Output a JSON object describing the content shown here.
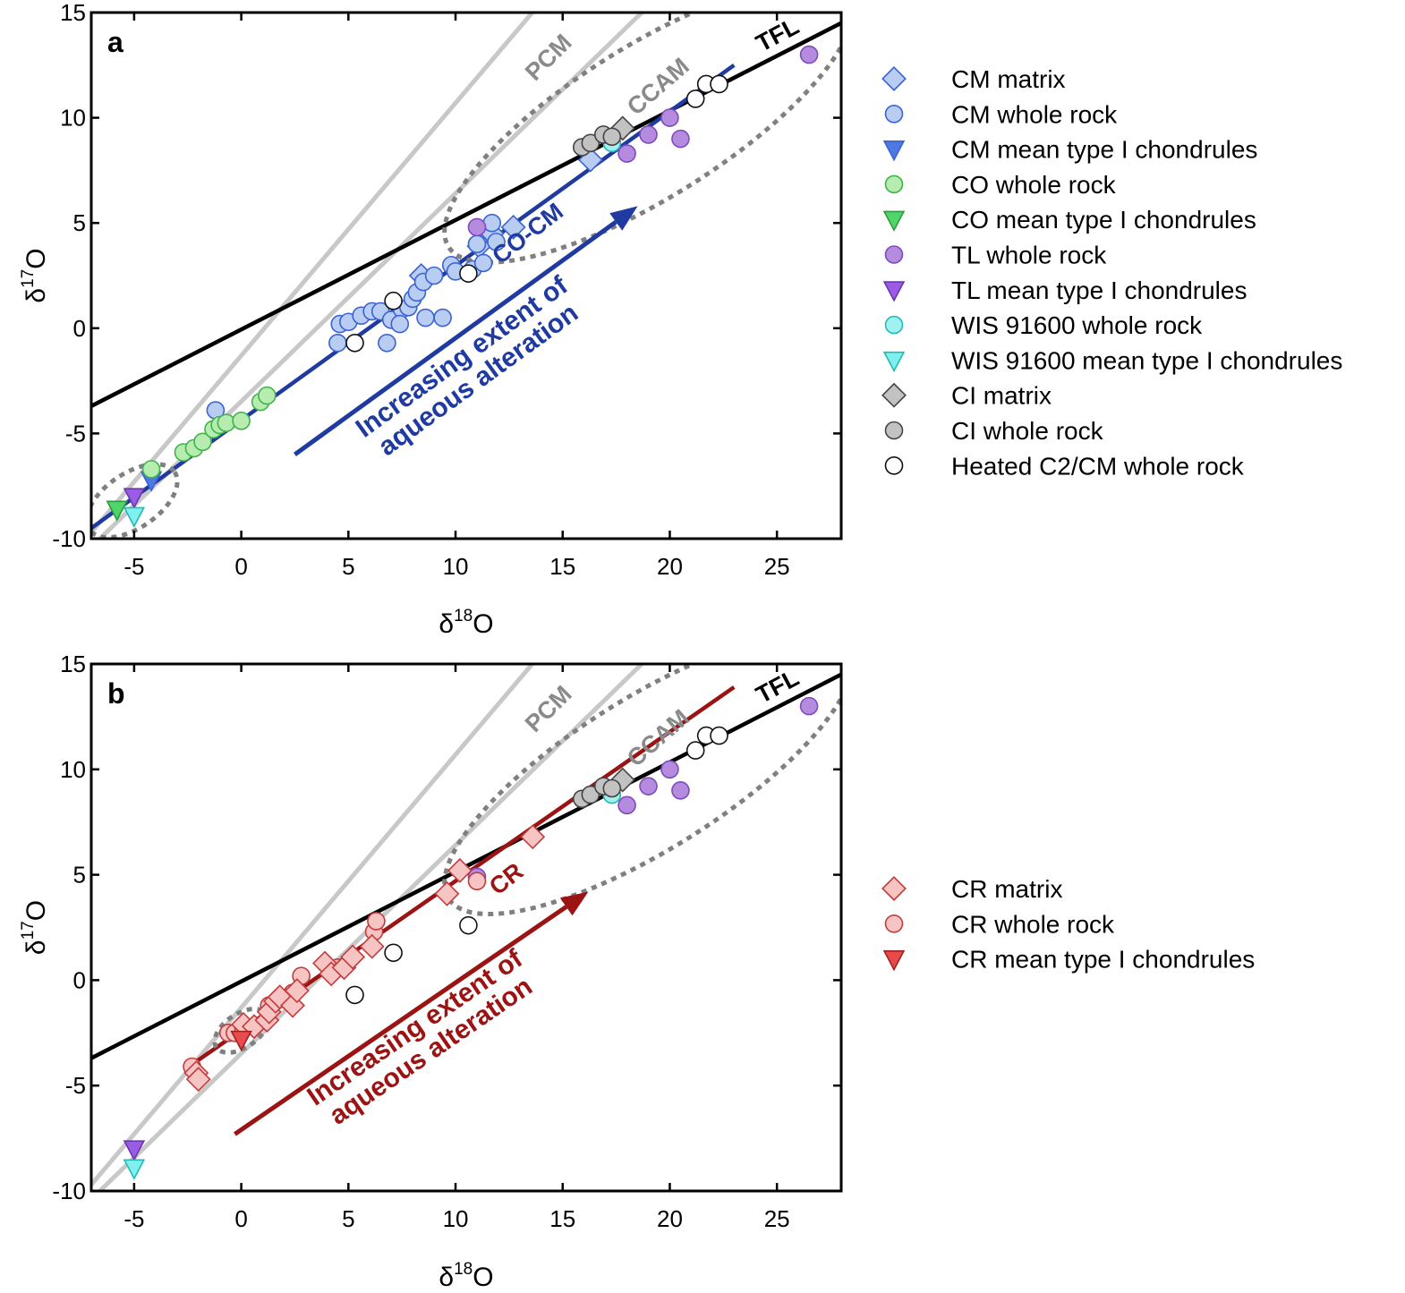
{
  "chart_data": [
    {
      "panel": "a",
      "type": "scatter",
      "xlabel": "δ18O",
      "ylabel": "δ17O",
      "xlim": [
        -7,
        28
      ],
      "ylim": [
        -10,
        15
      ],
      "xticks": [
        -5,
        0,
        5,
        10,
        15,
        20,
        25
      ],
      "yticks": [
        -10,
        -5,
        0,
        5,
        10,
        15
      ],
      "xtick_labels": [
        "-5",
        "0",
        "5",
        "10",
        "15",
        "20",
        "25"
      ],
      "ytick_labels": [
        "-10",
        "-5",
        "0",
        "5",
        "10",
        "15"
      ],
      "lines": [
        {
          "name": "TFL",
          "color": "#000000",
          "x": [
            -7,
            28
          ],
          "y": [
            -3.7,
            14.5
          ]
        },
        {
          "name": "PCM",
          "color": "#c8c8c8",
          "x": [
            -7,
            14
          ],
          "y": [
            -9.7,
            15.5
          ]
        },
        {
          "name": "CCAM",
          "color": "#c8c8c8",
          "x": [
            -6.6,
            19.2
          ],
          "y": [
            -10,
            15.5
          ]
        },
        {
          "name": "CO-CM",
          "color": "#1f3aa0",
          "x": [
            -7,
            23
          ],
          "y": [
            -9.5,
            12.5
          ]
        }
      ],
      "line_labels": [
        {
          "text": "TFL",
          "x": 25.2,
          "y": 13.6,
          "color": "#000000",
          "angle": -28
        },
        {
          "text": "PCM",
          "x": 14.6,
          "y": 12.6,
          "color": "#8a8a8a",
          "angle": -45
        },
        {
          "text": "CCAM",
          "x": 19.7,
          "y": 11.2,
          "color": "#8a8a8a",
          "angle": -41
        },
        {
          "text": "CO-CM",
          "x": 13.6,
          "y": 4.2,
          "color": "#1f3aa0",
          "angle": -38
        }
      ],
      "arrow": {
        "x": [
          2.5,
          18.5
        ],
        "y": [
          -6,
          5.8
        ],
        "color": "#1f3aa0"
      },
      "arrow_text": [
        "Increasing extent of",
        "aqueous alteration"
      ],
      "arrow_text_pos": {
        "x": 10.6,
        "y": -1.8
      },
      "ellipses": [
        {
          "cx": 19.0,
          "cy": 9.8,
          "rx": 11.0,
          "ry": 3.6,
          "angle": -32
        },
        {
          "cx": -5.1,
          "cy": -8.2,
          "rx": 2.4,
          "ry": 1.3,
          "angle": -34
        }
      ],
      "series": [
        {
          "name": "CM matrix",
          "marker": "diamond",
          "fill": "#b9cdf2",
          "stroke": "#3a63d3",
          "points": [
            [
              8.4,
              2.5
            ],
            [
              11.3,
              4.2
            ],
            [
              11.7,
              4.5
            ],
            [
              12.7,
              4.8
            ],
            [
              11.1,
              3.9
            ],
            [
              16.3,
              8.0
            ]
          ]
        },
        {
          "name": "CM whole rock",
          "marker": "circle",
          "fill": "#b9cdf2",
          "stroke": "#3a63d3",
          "points": [
            [
              -1.2,
              -3.9
            ],
            [
              4.5,
              -0.7
            ],
            [
              4.6,
              0.2
            ],
            [
              5.0,
              0.3
            ],
            [
              5.6,
              0.6
            ],
            [
              6.1,
              0.8
            ],
            [
              6.5,
              0.8
            ],
            [
              6.8,
              -0.7
            ],
            [
              7.0,
              0.4
            ],
            [
              7.5,
              0.9
            ],
            [
              7.8,
              1.0
            ],
            [
              8.0,
              1.4
            ],
            [
              8.2,
              1.7
            ],
            [
              8.5,
              2.2
            ],
            [
              8.6,
              0.5
            ],
            [
              9.0,
              2.5
            ],
            [
              9.4,
              0.5
            ],
            [
              9.8,
              3.0
            ],
            [
              10.0,
              2.7
            ],
            [
              10.8,
              2.8
            ],
            [
              11.0,
              4.0
            ],
            [
              11.3,
              3.1
            ],
            [
              11.7,
              5.0
            ],
            [
              11.9,
              4.1
            ],
            [
              7.4,
              0.2
            ]
          ]
        },
        {
          "name": "CM mean type I chondrules",
          "marker": "triangle-down",
          "fill": "#4f79e2",
          "stroke": "#3a63d3",
          "points": [
            [
              -4.2,
              -7.2
            ]
          ]
        },
        {
          "name": "CO whole rock",
          "marker": "circle",
          "fill": "#b7ecb0",
          "stroke": "#3fb34a",
          "points": [
            [
              -4.2,
              -6.7
            ],
            [
              -2.7,
              -5.9
            ],
            [
              -2.2,
              -5.7
            ],
            [
              -1.8,
              -5.4
            ],
            [
              -1.3,
              -4.8
            ],
            [
              -1.0,
              -4.6
            ],
            [
              -0.7,
              -4.5
            ],
            [
              0.0,
              -4.4
            ],
            [
              0.9,
              -3.5
            ],
            [
              1.2,
              -3.2
            ]
          ]
        },
        {
          "name": "CO mean type I chondrules",
          "marker": "triangle-down",
          "fill": "#4fd66a",
          "stroke": "#2f9a3d",
          "points": [
            [
              -5.8,
              -8.6
            ]
          ]
        },
        {
          "name": "TL whole rock",
          "marker": "circle",
          "fill": "#b58be0",
          "stroke": "#7d4bbb",
          "points": [
            [
              11.0,
              4.8
            ],
            [
              18.0,
              8.3
            ],
            [
              19.0,
              9.2
            ],
            [
              20.0,
              10.0
            ],
            [
              20.5,
              9.0
            ],
            [
              26.5,
              13.0
            ]
          ]
        },
        {
          "name": "TL mean type I chondrules",
          "marker": "triangle-down",
          "fill": "#9a5ce6",
          "stroke": "#6a36a8",
          "points": [
            [
              -5.0,
              -8.0
            ]
          ]
        },
        {
          "name": "WIS 91600 whole rock",
          "marker": "circle",
          "fill": "#9ff2ef",
          "stroke": "#26b8b3",
          "points": [
            [
              17.3,
              8.8
            ]
          ]
        },
        {
          "name": "WIS 91600 mean type I chondrules",
          "marker": "triangle-down",
          "fill": "#7ff0ee",
          "stroke": "#26b8b3",
          "points": [
            [
              -5.0,
              -8.9
            ]
          ]
        },
        {
          "name": "CI matrix",
          "marker": "diamond",
          "fill": "#c2c2c2",
          "stroke": "#444444",
          "points": [
            [
              17.8,
              9.5
            ]
          ]
        },
        {
          "name": "CI whole rock",
          "marker": "circle",
          "fill": "#c2c2c2",
          "stroke": "#444444",
          "points": [
            [
              15.9,
              8.6
            ],
            [
              16.3,
              8.8
            ],
            [
              16.9,
              9.2
            ],
            [
              17.3,
              9.1
            ]
          ]
        },
        {
          "name": "Heated C2/CM whole rock",
          "marker": "circle",
          "fill": "#ffffff",
          "stroke": "#111111",
          "points": [
            [
              5.3,
              -0.7
            ],
            [
              7.1,
              1.3
            ],
            [
              10.6,
              2.6
            ],
            [
              21.2,
              10.9
            ],
            [
              21.7,
              11.6
            ],
            [
              22.3,
              11.6
            ]
          ]
        }
      ],
      "legend": [
        "CM matrix",
        "CM whole rock",
        "CM mean type I chondrules",
        "CO whole rock",
        "CO mean type I chondrules",
        "TL whole rock",
        "TL mean type I chondrules",
        "WIS 91600 whole rock",
        "WIS 91600 mean type I chondrules",
        "CI matrix",
        "CI whole rock",
        "Heated C2/CM whole rock"
      ]
    },
    {
      "panel": "b",
      "type": "scatter",
      "xlabel": "δ18O",
      "ylabel": "δ17O",
      "xlim": [
        -7,
        28
      ],
      "ylim": [
        -10,
        15
      ],
      "xticks": [
        -5,
        0,
        5,
        10,
        15,
        20,
        25
      ],
      "yticks": [
        -10,
        -5,
        0,
        5,
        10,
        15
      ],
      "xtick_labels": [
        "-5",
        "0",
        "5",
        "10",
        "15",
        "20",
        "25"
      ],
      "ytick_labels": [
        "-10",
        "-5",
        "0",
        "5",
        "10",
        "15"
      ],
      "lines": [
        {
          "name": "TFL",
          "color": "#000000",
          "x": [
            -7,
            28
          ],
          "y": [
            -3.7,
            14.5
          ]
        },
        {
          "name": "PCM",
          "color": "#c8c8c8",
          "x": [
            -7,
            14
          ],
          "y": [
            -9.7,
            15.5
          ]
        },
        {
          "name": "CCAM",
          "color": "#c8c8c8",
          "x": [
            -6.6,
            19.2
          ],
          "y": [
            -10,
            15.5
          ]
        },
        {
          "name": "CR",
          "color": "#9b1313",
          "x": [
            -2.3,
            23
          ],
          "y": [
            -4.0,
            13.9
          ]
        }
      ],
      "line_labels": [
        {
          "text": "TFL",
          "x": 25.2,
          "y": 13.6,
          "color": "#000000",
          "angle": -28
        },
        {
          "text": "PCM",
          "x": 14.6,
          "y": 12.6,
          "color": "#8a8a8a",
          "angle": -45
        },
        {
          "text": "CCAM",
          "x": 19.7,
          "y": 11.2,
          "color": "#8a8a8a",
          "angle": -41
        },
        {
          "text": "CR",
          "x": 12.6,
          "y": 4.5,
          "color": "#9b1313",
          "angle": -38
        }
      ],
      "arrow": {
        "x": [
          -0.3,
          16.2
        ],
        "y": [
          -7.3,
          4.2
        ],
        "color": "#9b1313"
      },
      "arrow_text": [
        "Increasing extent of",
        "aqueous alteration"
      ],
      "arrow_text_pos": {
        "x": 8.4,
        "y": -2.7
      },
      "ellipses": [
        {
          "cx": 19.0,
          "cy": 9.8,
          "rx": 11.0,
          "ry": 3.6,
          "angle": -32
        },
        {
          "cx": 0.0,
          "cy": -2.4,
          "rx": 1.4,
          "ry": 0.8,
          "angle": -34
        }
      ],
      "series": [
        {
          "name": "TL whole rock",
          "marker": "circle",
          "fill": "#b58be0",
          "stroke": "#7d4bbb",
          "points": [
            [
              18.0,
              8.3
            ],
            [
              19.0,
              9.2
            ],
            [
              20.0,
              10.0
            ],
            [
              20.5,
              9.0
            ],
            [
              26.5,
              13.0
            ],
            [
              11.0,
              4.9
            ]
          ]
        },
        {
          "name": "TL mean type I chondrules",
          "marker": "triangle-down",
          "fill": "#9a5ce6",
          "stroke": "#6a36a8",
          "points": [
            [
              -5.0,
              -8.0
            ]
          ]
        },
        {
          "name": "WIS 91600 whole rock",
          "marker": "circle",
          "fill": "#9ff2ef",
          "stroke": "#26b8b3",
          "points": [
            [
              17.3,
              8.8
            ]
          ]
        },
        {
          "name": "WIS 91600 mean type I chondrules",
          "marker": "triangle-down",
          "fill": "#7ff0ee",
          "stroke": "#26b8b3",
          "points": [
            [
              -5.0,
              -8.9
            ]
          ]
        },
        {
          "name": "CI matrix",
          "marker": "diamond",
          "fill": "#c2c2c2",
          "stroke": "#444444",
          "points": [
            [
              17.8,
              9.5
            ]
          ]
        },
        {
          "name": "CI whole rock",
          "marker": "circle",
          "fill": "#c2c2c2",
          "stroke": "#444444",
          "points": [
            [
              15.9,
              8.6
            ],
            [
              16.3,
              8.8
            ],
            [
              16.9,
              9.2
            ],
            [
              17.3,
              9.1
            ]
          ]
        },
        {
          "name": "Heated C2/CM whole rock",
          "marker": "circle",
          "fill": "#ffffff",
          "stroke": "#111111",
          "points": [
            [
              5.3,
              -0.7
            ],
            [
              7.1,
              1.3
            ],
            [
              10.6,
              2.6
            ],
            [
              21.2,
              10.9
            ],
            [
              21.7,
              11.6
            ],
            [
              22.3,
              11.6
            ]
          ]
        },
        {
          "name": "CR whole rock",
          "marker": "circle",
          "fill": "#f7c4c4",
          "stroke": "#c43b3b",
          "points": [
            [
              -2.3,
              -4.1
            ],
            [
              -0.6,
              -2.5
            ],
            [
              -0.3,
              -2.5
            ],
            [
              0.1,
              -2.3
            ],
            [
              1.3,
              -1.2
            ],
            [
              1.8,
              -0.9
            ],
            [
              2.4,
              -0.6
            ],
            [
              2.8,
              0.2
            ],
            [
              4.5,
              0.6
            ],
            [
              6.2,
              2.3
            ],
            [
              6.3,
              2.8
            ],
            [
              11.0,
              4.7
            ]
          ]
        },
        {
          "name": "CR matrix",
          "marker": "diamond",
          "fill": "#f7c4c4",
          "stroke": "#c43b3b",
          "points": [
            [
              -2.1,
              -4.4
            ],
            [
              -2.0,
              -4.7
            ],
            [
              0.1,
              -2.1
            ],
            [
              0.6,
              -2.2
            ],
            [
              1.2,
              -1.9
            ],
            [
              1.3,
              -1.5
            ],
            [
              1.6,
              -1.0
            ],
            [
              1.8,
              -0.8
            ],
            [
              2.4,
              -1.2
            ],
            [
              2.6,
              -0.5
            ],
            [
              3.9,
              0.8
            ],
            [
              4.2,
              0.3
            ],
            [
              4.8,
              0.6
            ],
            [
              5.2,
              1.1
            ],
            [
              6.1,
              1.6
            ],
            [
              9.6,
              4.1
            ],
            [
              10.2,
              5.2
            ],
            [
              13.6,
              6.8
            ]
          ]
        },
        {
          "name": "CR mean type I chondrules",
          "marker": "triangle-down",
          "fill": "#e84b4b",
          "stroke": "#a31f1f",
          "points": [
            [
              0.0,
              -2.8
            ]
          ]
        }
      ],
      "legend": [
        "CR matrix",
        "CR whole rock",
        "CR mean type I chondrules"
      ]
    }
  ]
}
